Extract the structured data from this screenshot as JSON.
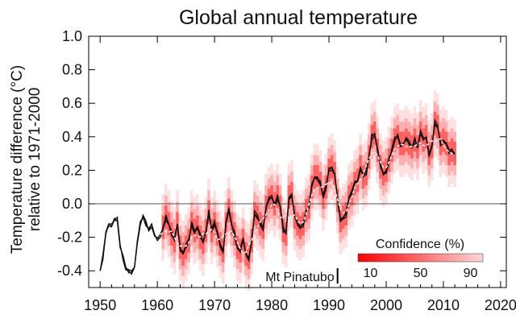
{
  "chart_data": {
    "type": "line",
    "title": "Global annual temperature",
    "ylabel_line1": "Temperature difference (°C)",
    "ylabel_line2": "relative to 1971-2000",
    "xlim": [
      1948,
      2021
    ],
    "ylim": [
      -0.5,
      1.0
    ],
    "x_ticks": [
      1950,
      1960,
      1970,
      1980,
      1990,
      2000,
      2010,
      2020
    ],
    "y_ticks": [
      -0.4,
      -0.2,
      0.0,
      0.2,
      0.4,
      0.6,
      0.8,
      1.0
    ],
    "y_tick_labels": [
      "-0.4",
      "-0.2",
      "0.0",
      "0.2",
      "0.4",
      "0.6",
      "0.8",
      "1.0"
    ],
    "zero_line": true,
    "annotation": {
      "text": "Mt Pinatubo",
      "x": 1991.5
    },
    "legend": {
      "title": "Confidence (%)",
      "labels": [
        "10",
        "50",
        "90"
      ],
      "label_values": [
        10,
        50,
        90
      ],
      "range": [
        0,
        100
      ],
      "position": "bottom-right"
    },
    "colors": {
      "band": "#ff0000",
      "band_light": "#ffd8d8",
      "line": "#111111",
      "median": "#f2f2f2",
      "axis": "#000000"
    },
    "series": [
      {
        "x": [
          1950,
          1950.5,
          1951,
          1951.5,
          1952,
          1952.5,
          1953,
          1953.5,
          1954,
          1954.5,
          1955,
          1955.5,
          1956,
          1956.5,
          1957,
          1957.5,
          1958,
          1958.5,
          1959,
          1959.5,
          1960,
          1960.5,
          1961,
          1961.5,
          1962,
          1962.5,
          1963,
          1963.5,
          1964,
          1964.5,
          1965,
          1965.5,
          1966,
          1966.5,
          1967,
          1967.5,
          1968,
          1968.5,
          1969,
          1969.5,
          1970,
          1970.5,
          1971,
          1971.5,
          1972,
          1972.5,
          1973,
          1973.5,
          1974,
          1974.5,
          1975,
          1975.5,
          1976,
          1976.5,
          1977,
          1977.5,
          1978,
          1978.5,
          1979,
          1979.5,
          1980,
          1980.5,
          1981,
          1981.5,
          1982,
          1982.5,
          1983,
          1983.5,
          1984,
          1984.5,
          1985,
          1985.5,
          1986,
          1986.5,
          1987,
          1987.5,
          1988,
          1988.5,
          1989,
          1989.5,
          1990,
          1990.5,
          1991,
          1991.5,
          1992,
          1992.5,
          1993,
          1993.5,
          1994,
          1994.5,
          1995,
          1995.5,
          1996,
          1996.5,
          1997,
          1997.5,
          1998,
          1998.5,
          1999,
          1999.5,
          2000,
          2000.5,
          2001,
          2001.5,
          2002,
          2002.5,
          2003,
          2003.5,
          2004,
          2004.5,
          2005,
          2005.5,
          2006,
          2006.5,
          2007,
          2007.5,
          2008,
          2008.5,
          2009,
          2009.5,
          2010,
          2010.5,
          2011,
          2011.5,
          2012
        ],
        "y": [
          -0.4,
          -0.32,
          -0.18,
          -0.12,
          -0.12,
          -0.1,
          -0.1,
          -0.25,
          -0.32,
          -0.38,
          -0.4,
          -0.42,
          -0.38,
          -0.22,
          -0.12,
          -0.08,
          -0.12,
          -0.16,
          -0.12,
          -0.18,
          -0.22,
          -0.2,
          -0.14,
          -0.08,
          -0.12,
          -0.18,
          -0.22,
          -0.12,
          -0.26,
          -0.3,
          -0.26,
          -0.22,
          -0.12,
          -0.16,
          -0.14,
          -0.2,
          -0.23,
          -0.16,
          -0.05,
          -0.16,
          -0.12,
          -0.18,
          -0.24,
          -0.28,
          -0.12,
          -0.04,
          -0.12,
          -0.18,
          -0.26,
          -0.28,
          -0.22,
          -0.3,
          -0.32,
          -0.22,
          -0.06,
          -0.08,
          -0.12,
          -0.14,
          -0.02,
          0.02,
          0.04,
          0.0,
          0.04,
          -0.02,
          -0.16,
          -0.18,
          0.04,
          0.06,
          -0.08,
          -0.12,
          -0.14,
          -0.12,
          -0.04,
          -0.02,
          0.1,
          0.16,
          0.16,
          0.12,
          0.04,
          0.1,
          0.2,
          0.22,
          0.18,
          0.02,
          -0.1,
          -0.08,
          -0.06,
          0.04,
          0.06,
          0.12,
          0.14,
          0.22,
          0.16,
          0.18,
          0.28,
          0.4,
          0.42,
          0.32,
          0.22,
          0.18,
          0.2,
          0.26,
          0.32,
          0.38,
          0.4,
          0.36,
          0.36,
          0.38,
          0.36,
          0.34,
          0.38,
          0.34,
          0.42,
          0.38,
          0.4,
          0.3,
          0.34,
          0.48,
          0.46,
          0.36,
          0.38,
          0.36,
          0.3,
          0.32,
          0.3
        ]
      }
    ]
  }
}
